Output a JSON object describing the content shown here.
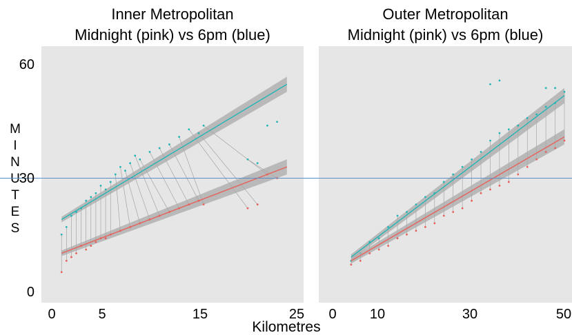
{
  "chart_data": [
    {
      "type": "scatter",
      "title": "Inner Metropolitan",
      "subtitle": "Midnight (pink) vs 6pm (blue)",
      "xticks": [
        "0",
        "5",
        "15",
        "25"
      ],
      "yticks": [
        "60",
        "30",
        "0"
      ],
      "xlim": [
        0,
        25
      ],
      "ylim": [
        0,
        60
      ],
      "reference_line_y": 30,
      "series": [
        {
          "color": "#23b5b5",
          "trend": {
            "x": [
              1,
              24
            ],
            "y": [
              19,
              55
            ]
          },
          "points": [
            [
              1,
              15
            ],
            [
              1.5,
              17
            ],
            [
              2,
              20
            ],
            [
              2.5,
              21
            ],
            [
              3,
              22
            ],
            [
              3.5,
              24
            ],
            [
              4,
              25
            ],
            [
              4.5,
              26
            ],
            [
              5,
              28
            ],
            [
              5.5,
              27
            ],
            [
              6,
              29
            ],
            [
              6.5,
              31
            ],
            [
              7,
              33
            ],
            [
              7.5,
              32
            ],
            [
              8,
              34
            ],
            [
              8.5,
              36
            ],
            [
              9,
              35
            ],
            [
              10,
              37
            ],
            [
              11,
              38
            ],
            [
              12,
              39
            ],
            [
              13,
              41
            ],
            [
              14,
              43
            ],
            [
              15,
              42
            ],
            [
              15.5,
              44
            ],
            [
              20,
              35
            ],
            [
              21,
              34
            ],
            [
              22,
              44
            ],
            [
              23,
              45
            ]
          ]
        },
        {
          "color": "#e8605a",
          "trend": {
            "x": [
              1,
              24
            ],
            "y": [
              10,
              33
            ]
          },
          "points": [
            [
              1,
              5
            ],
            [
              1.5,
              8
            ],
            [
              2,
              9
            ],
            [
              2.5,
              10
            ],
            [
              3,
              12
            ],
            [
              3.5,
              11
            ],
            [
              4,
              12
            ],
            [
              4.5,
              13
            ],
            [
              5,
              14
            ],
            [
              5.5,
              14
            ],
            [
              6,
              15
            ],
            [
              7,
              16
            ],
            [
              8,
              17
            ],
            [
              9,
              18
            ],
            [
              10,
              19
            ],
            [
              11,
              20
            ],
            [
              12,
              21
            ],
            [
              13,
              22
            ],
            [
              14,
              23
            ],
            [
              15,
              24
            ],
            [
              15.5,
              23
            ],
            [
              20,
              22
            ],
            [
              21,
              23
            ],
            [
              22,
              31
            ],
            [
              23,
              30
            ]
          ]
        }
      ]
    },
    {
      "type": "scatter",
      "title": "Outer Metropolitan",
      "subtitle": "Midnight (pink) vs 6pm (blue)",
      "xticks": [
        "0",
        "10",
        "30",
        "50"
      ],
      "xlim": [
        0,
        50
      ],
      "ylim": [
        0,
        60
      ],
      "reference_line_y": 30,
      "series": [
        {
          "color": "#23b5b5",
          "trend": {
            "x": [
              4,
              50
            ],
            "y": [
              9,
              52
            ]
          },
          "points": [
            [
              4,
              8
            ],
            [
              6,
              10
            ],
            [
              8,
              13
            ],
            [
              10,
              14
            ],
            [
              12,
              17
            ],
            [
              14,
              20
            ],
            [
              16,
              21
            ],
            [
              18,
              23
            ],
            [
              20,
              25
            ],
            [
              22,
              26
            ],
            [
              24,
              29
            ],
            [
              26,
              31
            ],
            [
              28,
              33
            ],
            [
              30,
              35
            ],
            [
              32,
              37
            ],
            [
              34,
              40
            ],
            [
              36,
              42
            ],
            [
              38,
              43
            ],
            [
              40,
              44
            ],
            [
              42,
              46
            ],
            [
              44,
              47
            ],
            [
              46,
              49
            ],
            [
              48,
              50
            ],
            [
              50,
              53
            ],
            [
              34,
              55
            ],
            [
              36,
              56
            ],
            [
              46,
              54
            ],
            [
              48,
              54
            ]
          ]
        },
        {
          "color": "#e8605a",
          "trend": {
            "x": [
              4,
              50
            ],
            "y": [
              8,
              41
            ]
          },
          "points": [
            [
              4,
              7
            ],
            [
              6,
              8
            ],
            [
              8,
              10
            ],
            [
              10,
              11
            ],
            [
              12,
              12
            ],
            [
              14,
              14
            ],
            [
              16,
              15
            ],
            [
              18,
              16
            ],
            [
              20,
              17
            ],
            [
              22,
              18
            ],
            [
              24,
              20
            ],
            [
              26,
              21
            ],
            [
              28,
              22
            ],
            [
              30,
              24
            ],
            [
              32,
              26
            ],
            [
              34,
              27
            ],
            [
              36,
              28
            ],
            [
              38,
              29
            ],
            [
              40,
              31
            ],
            [
              42,
              33
            ],
            [
              44,
              35
            ],
            [
              46,
              37
            ],
            [
              48,
              38
            ],
            [
              50,
              40
            ]
          ]
        }
      ]
    }
  ],
  "y_axis_title_letters": [
    "M",
    "I",
    "N",
    "U",
    "T",
    "E",
    "S"
  ],
  "x_axis_title": "Kilometres"
}
